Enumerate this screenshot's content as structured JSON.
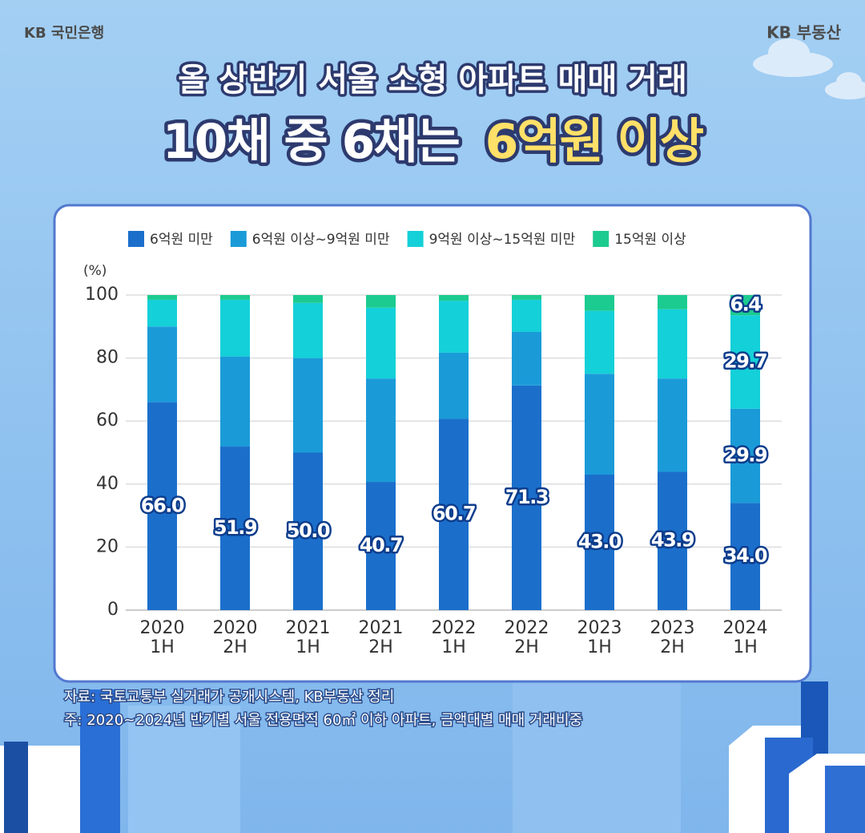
{
  "brand_left": "KB 국민은행",
  "brand_right": "KB 부동산",
  "chart_data": {
    "type": "stacked_bar",
    "title": "올 상반기 서울 소형 아파트 매매 거래",
    "subtitle": [
      "10채 중 6채는",
      "6억원 이상"
    ],
    "y_label": "(%)",
    "categories": [
      [
        "2020",
        "1H"
      ],
      [
        "2020",
        "2H"
      ],
      [
        "2021",
        "1H"
      ],
      [
        "2021",
        "2H"
      ],
      [
        "2022",
        "1H"
      ],
      [
        "2022",
        "2H"
      ],
      [
        "2023",
        "1H"
      ],
      [
        "2023",
        "2H"
      ],
      [
        "2024",
        "1H"
      ]
    ],
    "series": [
      {
        "name": "6억원 미만",
        "color": "#1b6fcb",
        "values": [
          66.0,
          51.9,
          50.0,
          40.7,
          60.7,
          71.3,
          43.0,
          43.9,
          34.0
        ],
        "value_labels": [
          "66.0",
          "51.9",
          "50.0",
          "40.7",
          "60.7",
          "71.3",
          "43.0",
          "43.9",
          "34.0"
        ]
      },
      {
        "name": "6억원 이상~9억원 미만",
        "color": "#1a9bd8",
        "values": [
          24.0,
          28.6,
          30.0,
          32.8,
          21.0,
          17.0,
          32.0,
          29.6,
          29.9
        ],
        "value_labels": [
          null,
          null,
          null,
          null,
          null,
          null,
          null,
          null,
          "29.9"
        ]
      },
      {
        "name": "9억원 이상~15억원 미만",
        "color": "#14d0d8",
        "values": [
          8.5,
          18.0,
          17.5,
          22.5,
          16.5,
          10.2,
          20.0,
          22.0,
          29.7
        ],
        "value_labels": [
          null,
          null,
          null,
          null,
          null,
          null,
          null,
          null,
          "29.7"
        ]
      },
      {
        "name": "15억원 이상",
        "color": "#1ccb8f",
        "values": [
          1.5,
          1.5,
          2.5,
          4.0,
          1.8,
          1.5,
          5.0,
          4.5,
          6.4
        ],
        "value_labels": [
          null,
          null,
          null,
          null,
          null,
          null,
          null,
          null,
          "6.4"
        ]
      }
    ],
    "ylim": [
      0,
      100
    ],
    "yticks": [
      0,
      20,
      40,
      60,
      80,
      100
    ],
    "grid": true,
    "legend": "top"
  },
  "notes": [
    "자료: 국토교통부 실거래가 공개시스템, KB부동산 정리",
    "주: 2020~2024년 반기별 서울 전용면적 60㎡ 이하 아파트, 금액대별 매매 거래비중"
  ]
}
